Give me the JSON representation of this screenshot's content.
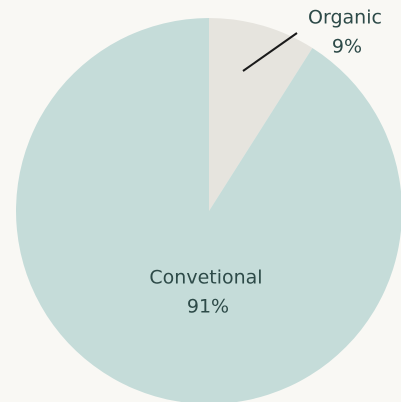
{
  "chart_data": {
    "type": "pie",
    "categories": [
      "Organic",
      "Convetional"
    ],
    "values": [
      9,
      91
    ],
    "value_labels": [
      "9%",
      "91%"
    ],
    "colors": [
      "#e6e4de",
      "#c5dcd9"
    ]
  }
}
